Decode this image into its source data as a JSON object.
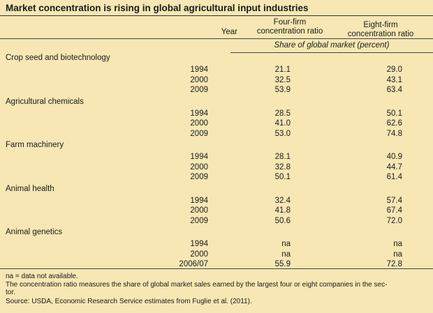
{
  "title": "Market concentration is rising in global agricultural input industries",
  "headers": {
    "year": "Year",
    "four_l1": "Four-firm",
    "four_l2": "concentration ratio",
    "eight_l1": "Eight-firm",
    "eight_l2": "concentration ratio",
    "subheader": "Share of global market (percent)"
  },
  "chart_data": {
    "type": "table",
    "title": "Market concentration is rising in global agricultural input industries",
    "columns": [
      "Year",
      "Four-firm concentration ratio",
      "Eight-firm concentration ratio"
    ],
    "unit": "Share of global market (percent)",
    "sections": [
      {
        "name": "Crop seed and biotechnology",
        "rows": [
          {
            "year": "1994",
            "four": "21.1",
            "eight": "29.0"
          },
          {
            "year": "2000",
            "four": "32.5",
            "eight": "43.1"
          },
          {
            "year": "2009",
            "four": "53.9",
            "eight": "63.4"
          }
        ]
      },
      {
        "name": "Agricultural chemicals",
        "rows": [
          {
            "year": "1994",
            "four": "28.5",
            "eight": "50.1"
          },
          {
            "year": "2000",
            "four": "41.0",
            "eight": "62.6"
          },
          {
            "year": "2009",
            "four": "53.0",
            "eight": "74.8"
          }
        ]
      },
      {
        "name": "Farm machinery",
        "rows": [
          {
            "year": "1994",
            "four": "28.1",
            "eight": "40.9"
          },
          {
            "year": "2000",
            "four": "32.8",
            "eight": "44.7"
          },
          {
            "year": "2009",
            "four": "50.1",
            "eight": "61.4"
          }
        ]
      },
      {
        "name": "Animal health",
        "rows": [
          {
            "year": "1994",
            "four": "32.4",
            "eight": "57.4"
          },
          {
            "year": "2000",
            "four": "41.8",
            "eight": "67.4"
          },
          {
            "year": "2009",
            "four": "50.6",
            "eight": "72.0"
          }
        ]
      },
      {
        "name": "Animal genetics",
        "rows": [
          {
            "year": "1994",
            "four": "na",
            "eight": "na"
          },
          {
            "year": "2000",
            "four": "na",
            "eight": "na"
          },
          {
            "year": "2006/07",
            "four": "55.9",
            "eight": "72.8"
          }
        ]
      }
    ]
  },
  "notes": {
    "na": "na = data not available.",
    "ratio": "The concentration ratio measures the share of global market sales earned by the largest four or eight companies in the sec-",
    "ratio2": "tor.",
    "source": "Source: USDA, Economic Research Service estimates from Fuglie et al. (2011)."
  },
  "colors": {
    "background": "#f7e7b4",
    "text": "#1a1a1a",
    "rule": "#444444"
  }
}
